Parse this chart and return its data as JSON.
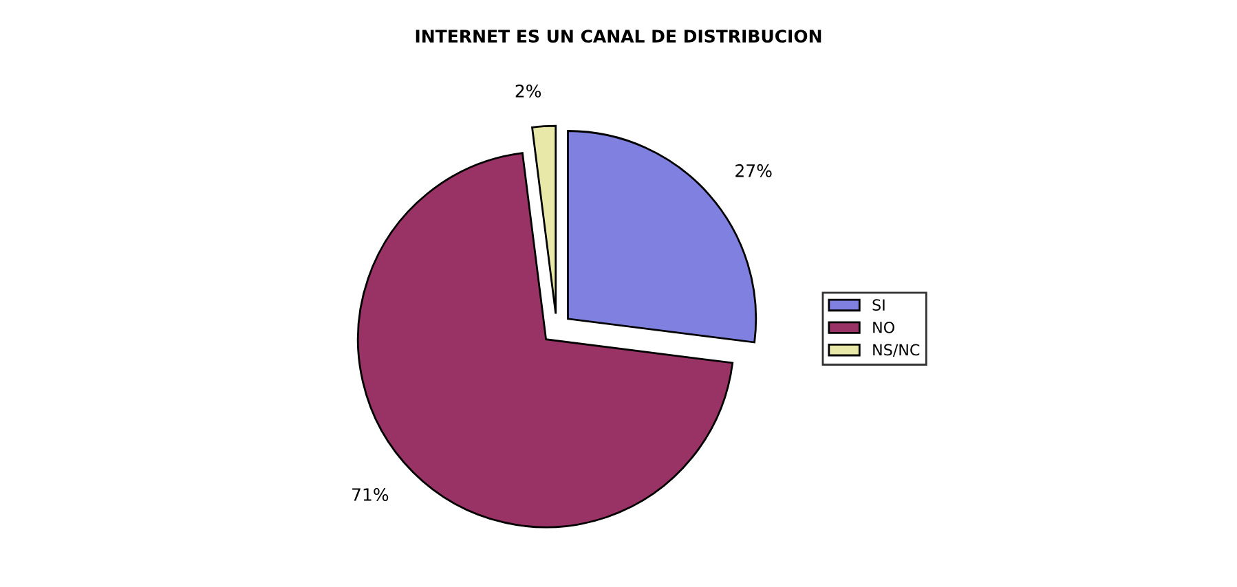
{
  "chart_data": {
    "type": "pie",
    "title": "INTERNET ES UN CANAL DE DISTRIBUCION",
    "categories": [
      "SI",
      "NO",
      "NS/NC"
    ],
    "values": [
      27,
      71,
      2
    ],
    "value_labels": [
      "27%",
      "71%",
      "2%"
    ],
    "colors": [
      "#8080e0",
      "#993366",
      "#e8e8a8"
    ],
    "legend": "right"
  }
}
